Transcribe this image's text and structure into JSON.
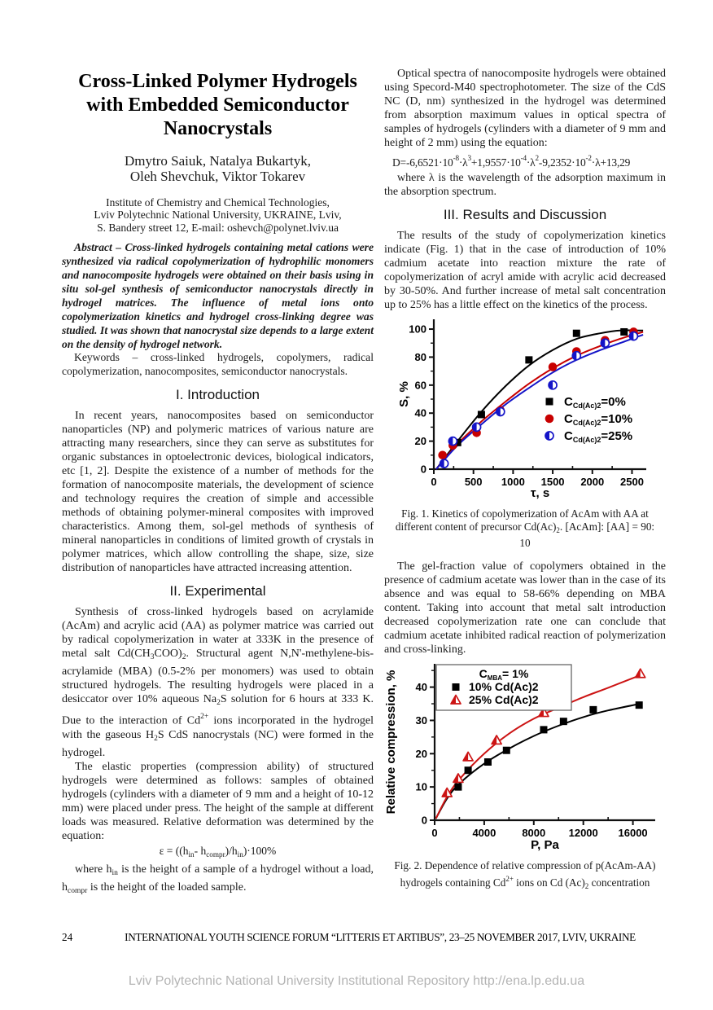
{
  "article": {
    "title": "Cross-Linked Polymer Hydrogels\nwith Embedded Semiconductor\nNanocrystals",
    "authors": "Dmytro Saiuk, Natalya Bukartyk,\nOleh Shevchuk, Viktor Tokarev",
    "affiliation": "Institute of Chemistry and Chemical Technologies,\nLviv Polytechnic National University, UKRAINE, Lviv,\nS. Bandery street 12, E-mail: oshevch@polynet.lviv.ua",
    "abstract": "Abstract – Cross-linked hydrogels containing metal cations were synthesized via radical copolymerization of hydrophilic monomers and nanocomposite hydrogels were obtained on their basis using in situ sol-gel synthesis of semiconductor nanocrystals directly in hydrogel matrices. The influence of metal ions onto copolymerization kinetics and hydrogel cross-linking degree was studied. It was shown that nanocrystal size depends to a large extent on the density of hydrogel network.",
    "keywords": "Keywords – cross-linked hydrogels, copolymers, radical copolymerization, nanocomposites, semiconductor nanocrystals.",
    "intro_heading": "I. Introduction",
    "intro_body": "In recent years, nanocomposites based on semiconductor nanoparticles (NP) and polymeric matrices of various nature are attracting many researchers, since they can serve as substitutes for organic substances in optoelectronic devices, biological indicators, etc [1, 2]. Despite the existence of a number of methods for the formation of nanocomposite materials, the development of science and technology requires the creation of simple and accessible methods of obtaining polymer-mineral composites with improved characteristics. Among them, sol-gel methods of synthesis of mineral nanoparticles in conditions of limited growth of crystals in polymer matrices, which allow controlling the shape, size, size distribution of nanoparticles have attracted increasing attention.",
    "exp_heading": "II. Experimental",
    "exp_p1_html": "Synthesis of cross-linked hydrogels based on acrylamide (AcAm) and acrylic acid (AA) as polymer matrice was carried out by radical copolymerization in water at 333K in the presence of metal salt Cd(CH<sub>3</sub>COO)<sub>2</sub>. Structural agent N,N'-methylene-bis-acrylamide (MBA) (0.5-2% per monomers) was used to obtain structured hydrogels. The resulting hydrogels were placed in a desiccator over 10% aqueous Na<sub>2</sub>S solution for 6 hours at 333 K. Due to the interaction of Cd<sup>2+</sup> ions incorporated in the hydrogel with the gaseous H<sub>2</sub>S CdS nanocrystals (NC) were formed in the hydrogel.",
    "exp_p2": "The elastic properties (compression ability) of structured hydrogels were determined as follows: samples of obtained hydrogels (cylinders with a diameter of 9 mm and a height of 10-12 mm) were placed under press. The height of the sample at different loads was measured. Relative deformation was determined by the equation:",
    "exp_eq_html": "ε = ((h<sub>in</sub>- h<sub>compr</sub>)/h<sub>in</sub>)·100%",
    "exp_p3_html": "where h<sub>in</sub> is the height of a sample of a hydrogel without a load, h<sub>compr</sub> is the height of the loaded sample.",
    "optical_p": "Optical spectra of nanocomposite hydrogels were obtained using Specord-M40 spectrophotometer. The size of the CdS NC (D, nm) synthesized in the hydrogel was determined from absorption maximum values in optical spectra of samples of hydrogels (cylinders with a diameter of 9 mm and height of 2 mm) using the equation:",
    "optical_eq_html": "D=-6,6521·10<sup>-8</sup>·λ<sup>3</sup>+1,9557·10<sup>-4</sup>·λ<sup>2</sup>-9,2352·10<sup>-2</sup>·λ+13,29",
    "optical_where": "where λ is the wavelength of the adsorption maximum in the absorption spectrum.",
    "results_heading": "III. Results and Discussion",
    "results_p1": "The results of the study of copolymerization kinetics indicate (Fig. 1) that in the case of introduction of 10% cadmium acetate into reaction mixture  the rate of copolymerization of acryl amide with acrylic acid decreased by 30-50%. And further increase of metal salt concentration up to 25% has a little effect on the kinetics of the process.",
    "fig1_caption_html": "Fig. 1. Kinetics of copolymerization of AcAm with AA at different content of precursor Cd(Ac)<sub>2</sub>. [AcAm]: [AA] = 90: 10",
    "results_p2": "The gel-fraction value of copolymers obtained in the presence of cadmium acetate was lower than in the case of its absence and was equal to 58-66% depending on MBA content. Taking into account that metal salt introduction decreased copolymerization rate one can conclude that cadmium acetate inhibited radical reaction of polymerization and cross-linking.",
    "fig2_caption_html": "Fig. 2.  Dependence of relative compression of p(AcAm-AA) hydrogels containing Cd<sup>2+</sup> ions on Cd (Ac)<sub>2</sub> concentration"
  },
  "footer": {
    "page_number": "24",
    "text": "INTERNATIONAL YOUTH SCIENCE FORUM “LITTERIS ET ARTIBUS”, 23–25 NOVEMBER 2017, LVIV, UKRAINE"
  },
  "watermark": "Lviv Polytechnic National University Institutional Repository http://ena.lp.edu.ua",
  "chart_data": [
    {
      "type": "scatter",
      "title": "",
      "xlabel": "τ, s",
      "ylabel": "S, %",
      "xlim": [
        0,
        2680
      ],
      "ylim": [
        0,
        107
      ],
      "xticks": [
        0,
        500,
        1000,
        1500,
        2000,
        2500
      ],
      "xminor": 250,
      "yticks": [
        0,
        20,
        40,
        60,
        80,
        100
      ],
      "yminor": 10,
      "grid": false,
      "legend_position": "right-center",
      "series": [
        {
          "name": "C_Cd(Ac)2=0%",
          "name_parts": [
            {
              "t": "C"
            },
            {
              "t": "Cd(Ac)2",
              "sub": true
            },
            {
              "t": "=0%"
            }
          ],
          "marker": "square",
          "color": "#000000",
          "points": [
            [
              300,
              19
            ],
            [
              600,
              39
            ],
            [
              1200,
              78
            ],
            [
              1800,
              97
            ],
            [
              2400,
              98
            ]
          ],
          "curve": [
            [
              30,
              0
            ],
            [
              300,
              20
            ],
            [
              600,
              41
            ],
            [
              900,
              59
            ],
            [
              1200,
              74
            ],
            [
              1500,
              85
            ],
            [
              1800,
              93
            ],
            [
              2100,
              97
            ],
            [
              2350,
              99
            ],
            [
              2640,
              99
            ]
          ]
        },
        {
          "name": "C_Cd(Ac)2=10%",
          "name_parts": [
            {
              "t": "C"
            },
            {
              "t": "Cd(Ac)2",
              "sub": true
            },
            {
              "t": "=10%"
            }
          ],
          "marker": "circle",
          "color": "#c80000",
          "points": [
            [
              110,
              10
            ],
            [
              240,
              17
            ],
            [
              540,
              26
            ],
            [
              840,
              42
            ],
            [
              1500,
              73
            ],
            [
              1800,
              84
            ],
            [
              2160,
              92
            ],
            [
              2520,
              98
            ]
          ],
          "curve": [
            [
              30,
              0
            ],
            [
              300,
              18
            ],
            [
              600,
              34
            ],
            [
              900,
              48
            ],
            [
              1200,
              61
            ],
            [
              1500,
              72
            ],
            [
              1800,
              81
            ],
            [
              2100,
              88
            ],
            [
              2400,
              94
            ],
            [
              2640,
              98
            ]
          ]
        },
        {
          "name": "C_Cd(Ac)2=25%",
          "name_parts": [
            {
              "t": "C"
            },
            {
              "t": "Cd(Ac)2",
              "sub": true
            },
            {
              "t": "=25%"
            }
          ],
          "marker": "half-circle",
          "color": "#1414c8",
          "points": [
            [
              130,
              4
            ],
            [
              240,
              20
            ],
            [
              540,
              30
            ],
            [
              840,
              41
            ],
            [
              1500,
              60
            ],
            [
              1800,
              81
            ],
            [
              2160,
              90
            ],
            [
              2520,
              95
            ]
          ],
          "curve": [
            [
              30,
              0
            ],
            [
              300,
              17
            ],
            [
              600,
              32
            ],
            [
              900,
              46
            ],
            [
              1200,
              58
            ],
            [
              1500,
              69
            ],
            [
              1800,
              78
            ],
            [
              2100,
              85
            ],
            [
              2400,
              91
            ],
            [
              2640,
              96
            ]
          ]
        }
      ]
    },
    {
      "type": "scatter",
      "title": "",
      "xlabel": "P, Pa",
      "ylabel": "Relative compression, %",
      "xlim": [
        0,
        17800
      ],
      "ylim": [
        0,
        47
      ],
      "xticks": [
        0,
        4000,
        8000,
        12000,
        16000
      ],
      "xminor": 2000,
      "yticks": [
        0,
        10,
        20,
        30,
        40
      ],
      "yminor": 5,
      "grid": false,
      "legend_position": "top-left-box",
      "legend_title": "C_MBA= 1%",
      "legend_title_parts": [
        {
          "t": "C"
        },
        {
          "t": "MBA",
          "sub": true
        },
        {
          "t": "= 1%"
        }
      ],
      "series": [
        {
          "name": "10% Cd(Ac)2",
          "name_parts": [
            {
              "t": "10% Cd(Ac)2"
            }
          ],
          "marker": "square",
          "color": "#000000",
          "points": [
            [
              1900,
              10
            ],
            [
              2700,
              15
            ],
            [
              4300,
              17.5
            ],
            [
              5800,
              21
            ],
            [
              8800,
              27.2
            ],
            [
              10400,
              29.7
            ],
            [
              12800,
              33.2
            ],
            [
              16500,
              34.6
            ]
          ],
          "curve": [
            [
              100,
              0.5
            ],
            [
              1000,
              6.5
            ],
            [
              2000,
              11
            ],
            [
              4000,
              17
            ],
            [
              6000,
              21.5
            ],
            [
              8000,
              25.3
            ],
            [
              10000,
              28.4
            ],
            [
              12000,
              31
            ],
            [
              14000,
              33
            ],
            [
              16600,
              35
            ]
          ]
        },
        {
          "name": "25% Cd(Ac)2",
          "name_parts": [
            {
              "t": "25% Cd(Ac)2"
            }
          ],
          "marker": "half-triangle",
          "color": "#cc1414",
          "points": [
            [
              1000,
              8.2
            ],
            [
              1900,
              12.5
            ],
            [
              2700,
              19
            ],
            [
              5000,
              24
            ],
            [
              8800,
              32.3
            ],
            [
              16600,
              44
            ]
          ],
          "curve": [
            [
              100,
              0.5
            ],
            [
              1000,
              7
            ],
            [
              2000,
              12.3
            ],
            [
              4000,
              20
            ],
            [
              6000,
              26
            ],
            [
              8000,
              30.5
            ],
            [
              10000,
              33.8
            ],
            [
              12000,
              37
            ],
            [
              14000,
              39.8
            ],
            [
              16600,
              43.6
            ]
          ]
        }
      ]
    }
  ]
}
